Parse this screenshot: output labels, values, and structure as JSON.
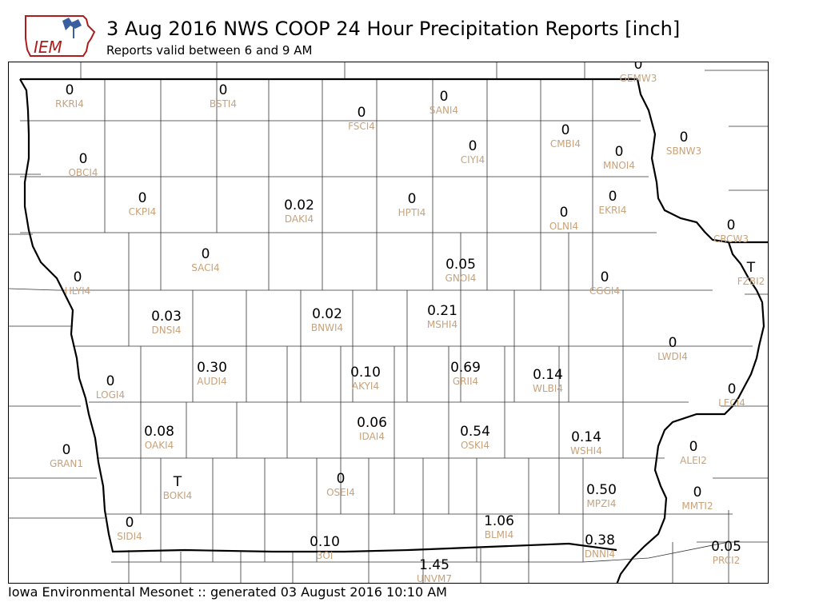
{
  "header": {
    "logo_text": "IEM",
    "title": "3 Aug 2016 NWS COOP 24 Hour Precipitation Reports [inch]",
    "subtitle": "Reports valid between 6 and 9 AM"
  },
  "footer": {
    "text": "Iowa Environmental Mesonet :: generated 03 August 2016 10:10 AM"
  },
  "colors": {
    "value_text": "#000000",
    "station_id": "#c8a27a",
    "border": "#000000",
    "county_line": "#333333"
  },
  "stations": [
    {
      "id": "RKRI4",
      "value": "0"
    },
    {
      "id": "BSTI4",
      "value": "0"
    },
    {
      "id": "FSCI4",
      "value": "0"
    },
    {
      "id": "SANI4",
      "value": "0"
    },
    {
      "id": "GEMW3",
      "value": "0"
    },
    {
      "id": "OBCI4",
      "value": "0"
    },
    {
      "id": "CIYI4",
      "value": "0"
    },
    {
      "id": "CMBI4",
      "value": "0"
    },
    {
      "id": "MNOI4",
      "value": "0"
    },
    {
      "id": "SBNW3",
      "value": "0"
    },
    {
      "id": "CKPI4",
      "value": "0"
    },
    {
      "id": "DAKI4",
      "value": "0.02"
    },
    {
      "id": "HPTI4",
      "value": "0"
    },
    {
      "id": "OLNI4",
      "value": "0"
    },
    {
      "id": "EKRI4",
      "value": "0"
    },
    {
      "id": "CRCW3",
      "value": "0"
    },
    {
      "id": "SACI4",
      "value": "0"
    },
    {
      "id": "GNOI4",
      "value": "0.05"
    },
    {
      "id": "FZBI2",
      "value": "T"
    },
    {
      "id": "HLYI4",
      "value": "0"
    },
    {
      "id": "CGGI4",
      "value": "0"
    },
    {
      "id": "DNSI4",
      "value": "0.03"
    },
    {
      "id": "BNWI4",
      "value": "0.02"
    },
    {
      "id": "MSHI4",
      "value": "0.21"
    },
    {
      "id": "LWDI4",
      "value": "0"
    },
    {
      "id": "AUDI4",
      "value": "0.30"
    },
    {
      "id": "AKYI4",
      "value": "0.10"
    },
    {
      "id": "GRII4",
      "value": "0.69"
    },
    {
      "id": "WLBI4",
      "value": "0.14"
    },
    {
      "id": "LOGI4",
      "value": "0"
    },
    {
      "id": "LECI4",
      "value": "0"
    },
    {
      "id": "OAKI4",
      "value": "0.08"
    },
    {
      "id": "IDAI4",
      "value": "0.06"
    },
    {
      "id": "OSKI4",
      "value": "0.54"
    },
    {
      "id": "WSHI4",
      "value": "0.14"
    },
    {
      "id": "GRAN1",
      "value": "0"
    },
    {
      "id": "ALEI2",
      "value": "0"
    },
    {
      "id": "BOKI4",
      "value": "T"
    },
    {
      "id": "OSEI4",
      "value": "0"
    },
    {
      "id": "MPZI4",
      "value": "0.50"
    },
    {
      "id": "MMTI2",
      "value": "0"
    },
    {
      "id": "SIDI4",
      "value": "0"
    },
    {
      "id": "BLMI4",
      "value": "1.06"
    },
    {
      "id": "DNNI4",
      "value": "0.38"
    },
    {
      "id": "3OI",
      "value": "0.10"
    },
    {
      "id": "PRCI2",
      "value": "0.05"
    },
    {
      "id": "UNVM7",
      "value": "1.45"
    }
  ]
}
